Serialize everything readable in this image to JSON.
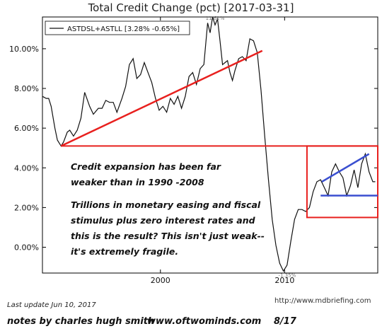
{
  "chart_data": {
    "type": "line",
    "title": "Total Credit Change (pct) [2017-03-31]",
    "xlabel": "",
    "ylabel": "",
    "xlim": [
      1990.5,
      2017.5
    ],
    "ylim": [
      -1.3,
      11.6
    ],
    "x_ticks": [
      2000,
      2010
    ],
    "x_tick_labels": [
      "2000",
      "2010"
    ],
    "y_ticks": [
      0,
      2,
      4,
      6,
      8,
      10
    ],
    "y_tick_labels": [
      "0.00%",
      "2.00%",
      "4.00%",
      "6.00%",
      "8.00%",
      "10.00%"
    ],
    "grid": false,
    "legend": {
      "placement": "top-left",
      "entries": [
        "ASTDSL+ASTLL [3.28% -0.65%]"
      ]
    },
    "series": [
      {
        "name": "ASTDSL+ASTLL [3.28% -0.65%]",
        "color": "#111111",
        "x": [
          1990.5,
          1990.8,
          1991.0,
          1991.2,
          1991.5,
          1991.7,
          1992.0,
          1992.2,
          1992.5,
          1992.7,
          1993.0,
          1993.3,
          1993.6,
          1993.9,
          1994.3,
          1994.6,
          1995.0,
          1995.3,
          1995.6,
          1995.9,
          1996.2,
          1996.5,
          1996.9,
          1997.2,
          1997.5,
          1997.8,
          1998.1,
          1998.4,
          1998.7,
          1999.0,
          1999.3,
          1999.6,
          1999.9,
          2000.2,
          2000.5,
          2000.8,
          2001.1,
          2001.4,
          2001.7,
          2002.0,
          2002.3,
          2002.6,
          2002.9,
          2003.2,
          2003.5,
          2003.8,
          2004.0,
          2004.2,
          2004.4,
          2004.6,
          2004.8,
          2005.0,
          2005.2,
          2005.4,
          2005.6,
          2005.8,
          2006.0,
          2006.3,
          2006.6,
          2006.9,
          2007.2,
          2007.5,
          2007.8,
          2008.1,
          2008.4,
          2008.7,
          2009.0,
          2009.3,
          2009.6,
          2009.9,
          2010.2,
          2010.5,
          2010.8,
          2011.1,
          2011.4,
          2011.7,
          2012.0,
          2012.3,
          2012.6,
          2012.9,
          2013.2,
          2013.5,
          2013.8,
          2014.1,
          2014.4,
          2014.7,
          2015.0,
          2015.3,
          2015.6,
          2015.9,
          2016.2,
          2016.5,
          2016.8,
          2017.1,
          2017.3
        ],
        "values": [
          7.6,
          7.5,
          7.5,
          7.1,
          6.0,
          5.4,
          5.1,
          5.3,
          5.8,
          5.9,
          5.6,
          5.9,
          6.5,
          7.8,
          7.1,
          6.7,
          7.0,
          7.0,
          7.4,
          7.3,
          7.3,
          6.8,
          7.5,
          8.1,
          9.2,
          9.5,
          8.5,
          8.7,
          9.3,
          8.8,
          8.3,
          7.5,
          6.9,
          7.1,
          6.8,
          7.5,
          7.2,
          7.6,
          7.0,
          7.6,
          8.6,
          8.8,
          8.2,
          9.0,
          9.2,
          11.3,
          10.8,
          11.6,
          11.2,
          11.5,
          10.4,
          9.2,
          9.3,
          9.4,
          8.8,
          8.4,
          8.9,
          9.5,
          9.6,
          9.4,
          10.5,
          10.4,
          9.8,
          7.9,
          5.6,
          3.4,
          1.4,
          0.1,
          -0.8,
          -1.2,
          -0.9,
          0.3,
          1.4,
          1.9,
          1.9,
          1.8,
          2.0,
          2.8,
          3.3,
          3.4,
          3.0,
          2.6,
          3.8,
          4.2,
          3.8,
          3.5,
          2.6,
          3.1,
          3.9,
          3.0,
          4.2,
          4.7,
          3.8,
          3.3,
          3.3
        ]
      }
    ],
    "value_labels": [
      {
        "text": "11.62%",
        "x": 2004.4,
        "y": 11.6
      },
      {
        "text": "-1.35%",
        "x": 2010.2,
        "y": -1.35
      }
    ],
    "overlays": {
      "color": "#e8201e",
      "trend_line": {
        "from": [
          1992.0,
          5.1
        ],
        "to": [
          2008.2,
          9.9
        ]
      },
      "reference_line": {
        "from": [
          1992.0,
          5.1
        ],
        "to": [
          2017.5,
          5.1
        ]
      },
      "highlight_box": {
        "x0": 2011.8,
        "x1": 2017.5,
        "y0": 1.5,
        "y1": 5.1
      },
      "blue_color": "#3a4fd0",
      "blue_trend": {
        "from": [
          2013.0,
          3.3
        ],
        "to": [
          2016.8,
          4.7
        ]
      },
      "blue_level": {
        "from": [
          2012.9,
          2.6
        ],
        "to": [
          2017.5,
          2.6
        ]
      }
    },
    "annotations": [
      "Credit expansion has been far",
      "weaker than in 1990 -2008",
      "Trillions in monetary easing and fiscal",
      "stimulus plus zero interest rates and",
      "this is the result? This isn't just weak--",
      "it's extremely fragile."
    ]
  },
  "footer": {
    "last_update": "Last update Jun 10, 2017",
    "source": "http://www.mdbriefing.com",
    "notes": "notes by charles hugh smith",
    "site": "www.oftwominds.com",
    "date": "8/17"
  }
}
